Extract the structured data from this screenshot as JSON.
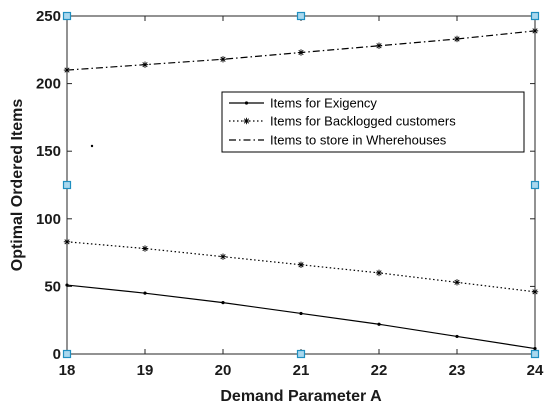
{
  "chart_data": {
    "type": "line",
    "title": "",
    "xlabel": "Demand Parameter A",
    "ylabel": "Optimal Ordered Items",
    "xlim": [
      18,
      24
    ],
    "ylim": [
      0,
      250
    ],
    "x_ticks": [
      "18",
      "19",
      "20",
      "21",
      "22",
      "23",
      "24"
    ],
    "y_ticks": [
      "0",
      "50",
      "100",
      "150",
      "200",
      "250"
    ],
    "grid": false,
    "legend_position": "center-right",
    "x": [
      18,
      19,
      20,
      21,
      22,
      23,
      24
    ],
    "series": [
      {
        "name": "Items for Exigency",
        "style": "solid",
        "marker": "dot",
        "values": [
          51,
          45,
          38,
          30,
          22,
          13,
          4
        ]
      },
      {
        "name": "Items for Backlogged customers",
        "style": "dotted",
        "marker": "asterisk",
        "values": [
          83,
          78,
          72,
          66,
          60,
          53,
          46
        ]
      },
      {
        "name": "Items to store in Wherehouses",
        "style": "dashdot",
        "marker": "asterisk",
        "values": [
          210,
          214,
          218,
          223,
          228,
          233,
          239
        ]
      }
    ],
    "colors": {
      "lines": "#000000",
      "handles_fill": "#a9d8ee",
      "handles_stroke": "#1f8fc0"
    }
  }
}
